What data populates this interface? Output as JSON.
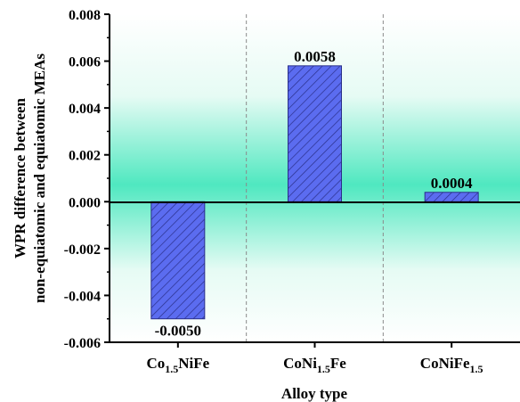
{
  "chart_data": {
    "type": "bar",
    "categories": [
      {
        "base": "Co",
        "sub": "1.5",
        "rest": "NiFe"
      },
      {
        "base": "CoNi",
        "sub": "1.5",
        "rest": "Fe"
      },
      {
        "base": "CoNiFe",
        "sub": "1.5",
        "rest": ""
      }
    ],
    "values": [
      -0.005,
      0.0058,
      0.0004
    ],
    "data_labels": [
      "-0.0050",
      "0.0058",
      "0.0004"
    ],
    "xlabel": "Alloy type",
    "ylabel_lines": [
      "WPR difference between",
      "non-equiatomic and equiatomic MEAs"
    ],
    "ylim": [
      -0.006,
      0.008
    ],
    "yticks": [
      "0.008",
      "0.006",
      "0.004",
      "0.002",
      "0.000",
      "-0.002",
      "-0.004",
      "-0.006"
    ],
    "ytick_values": [
      0.008,
      0.006,
      0.004,
      0.002,
      0.0,
      -0.002,
      -0.004,
      -0.006
    ],
    "zero_line": true,
    "category_separators": "dashed",
    "grid": false,
    "colors": {
      "bar_fill": "#5b6cf0",
      "bar_hatch": "#2a2f8a",
      "bg_center": "#4fe8c0",
      "bg_edge": "#ffffff"
    }
  }
}
